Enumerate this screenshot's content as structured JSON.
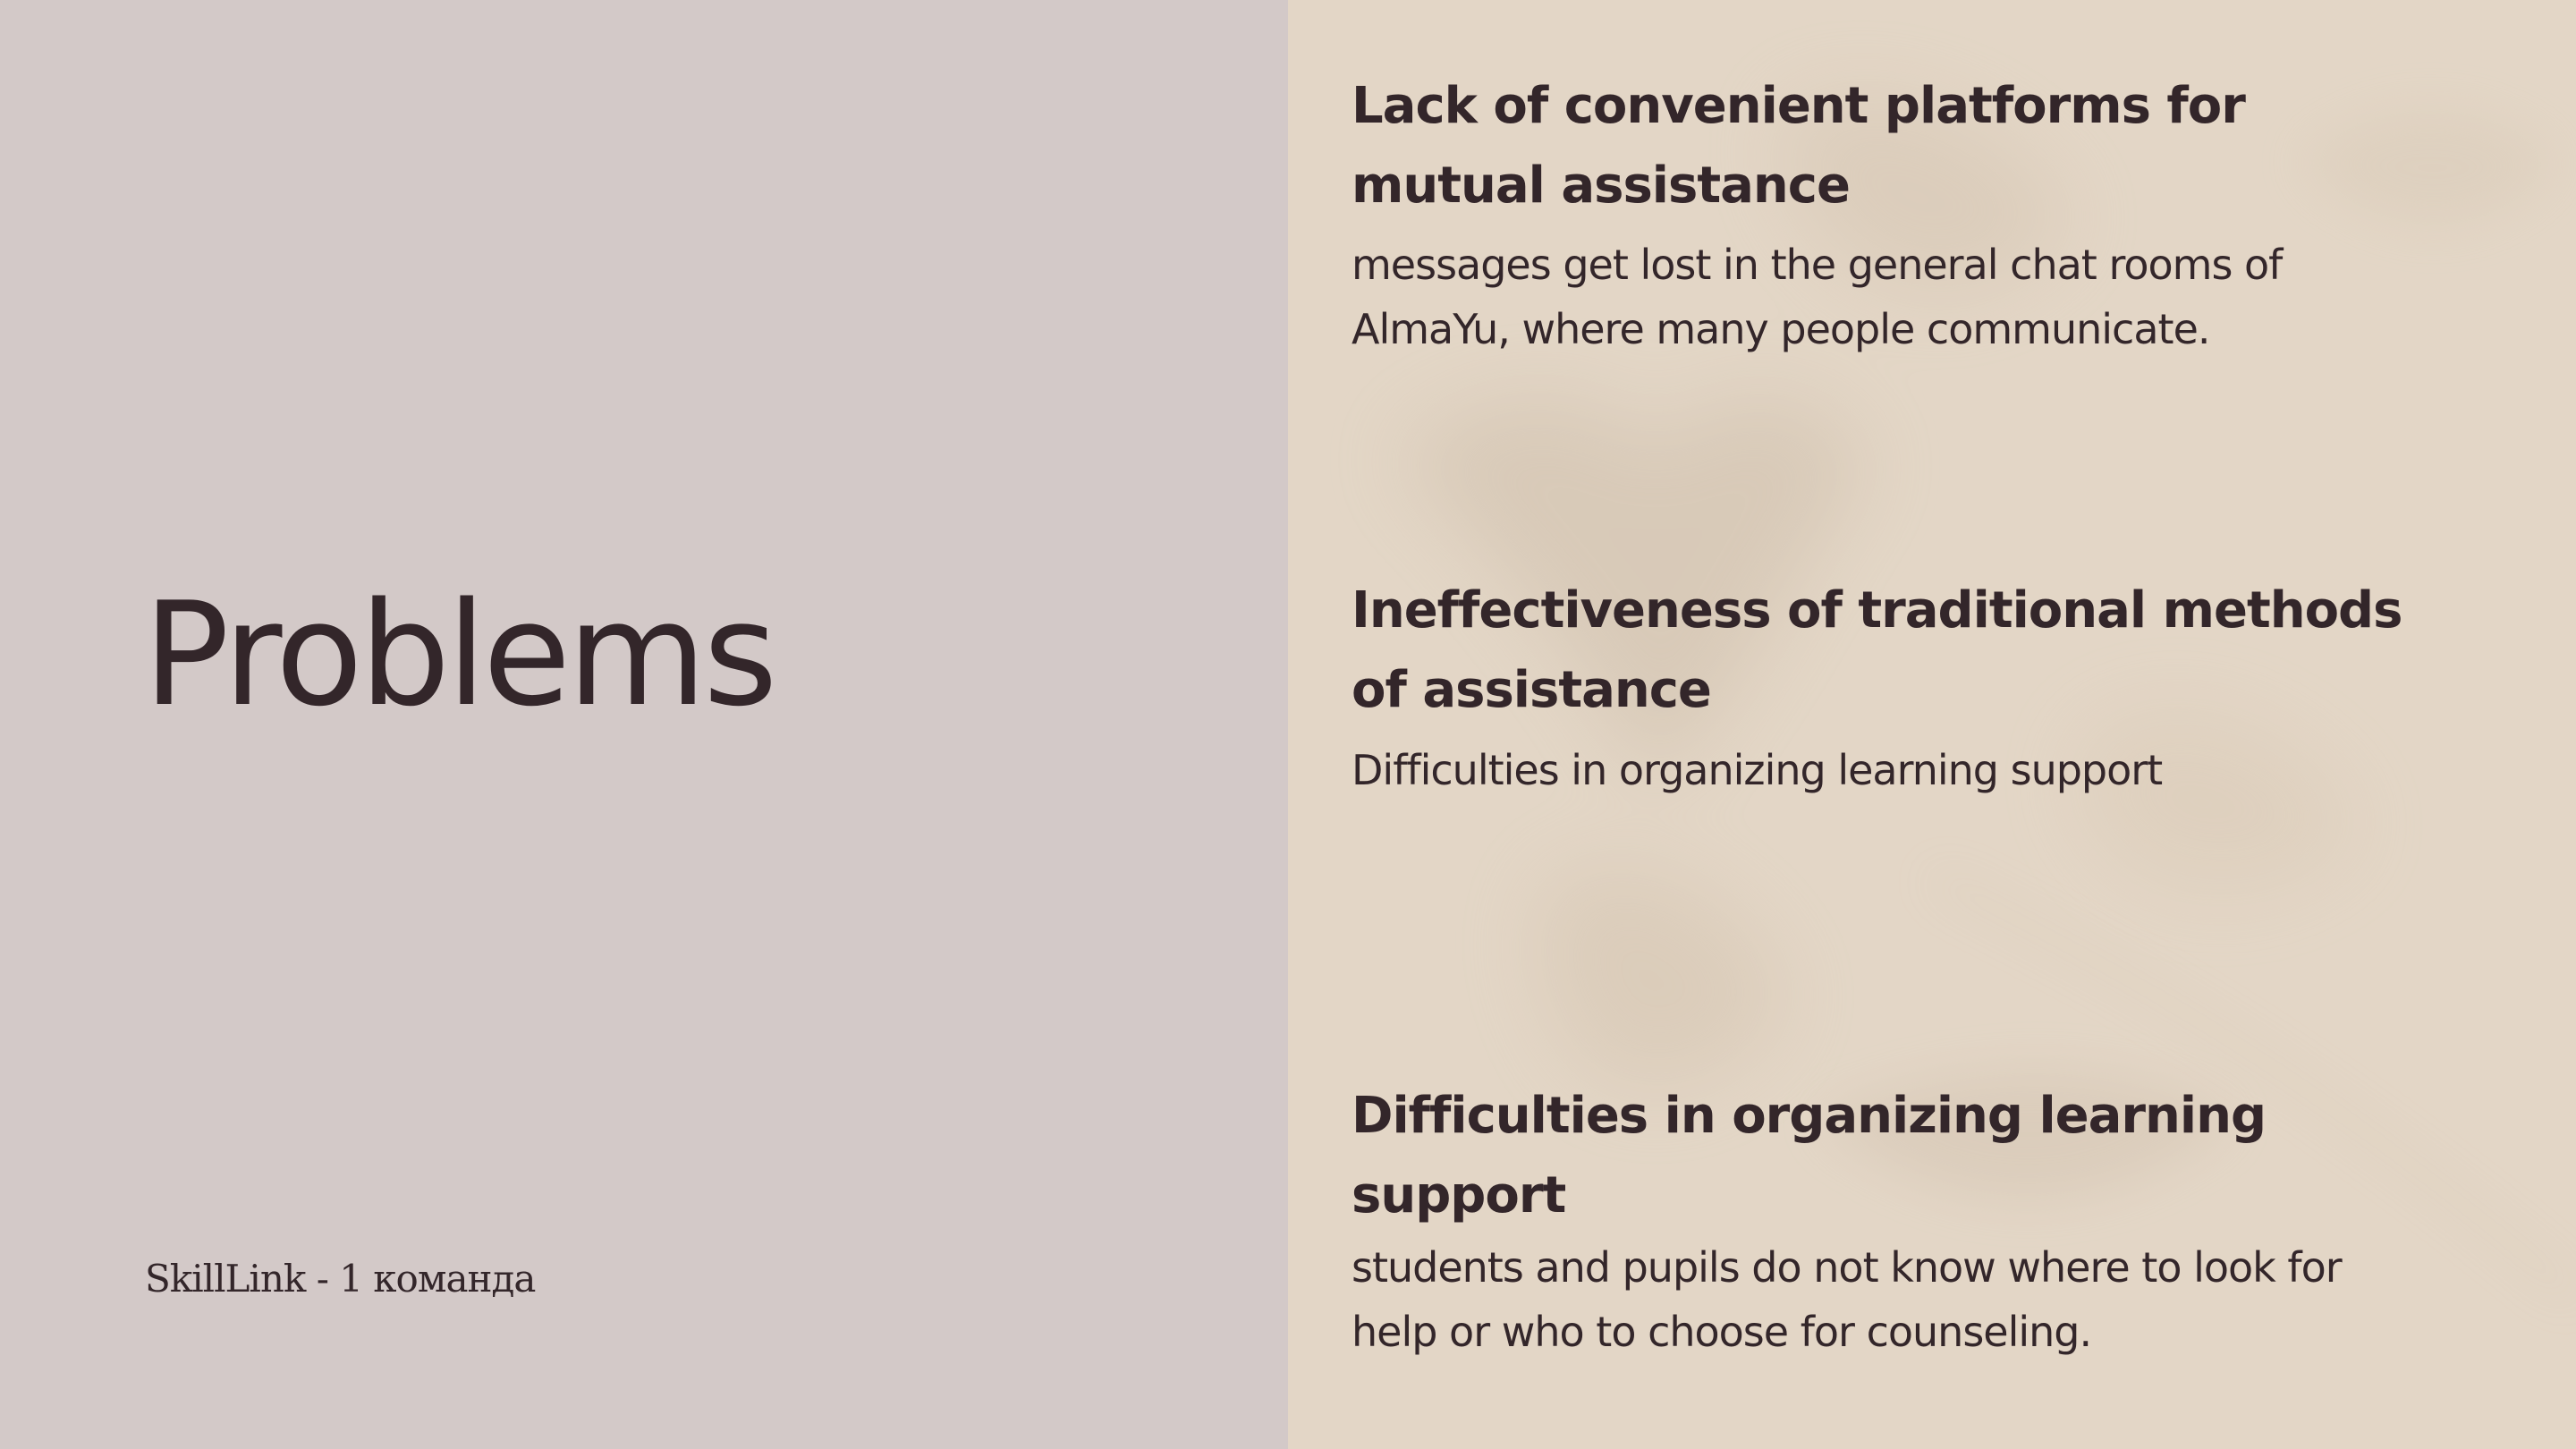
{
  "slide": {
    "title": "Problems",
    "footer": "SkillLink - 1 команда",
    "colors": {
      "left_background": "#d3c9c8",
      "right_background": "#e3d6c6",
      "text": "#33262a"
    },
    "problems": [
      {
        "heading": "Lack of convenient platforms for mutual assistance",
        "description": "messages get lost in the general chat rooms of AlmaYu, where many people communicate."
      },
      {
        "heading": "Ineffectiveness of traditional methods of assistance",
        "description": "Difficulties in organizing learning support"
      },
      {
        "heading": "Difficulties in organizing learning support",
        "description": "students and pupils do not know where to look for help or who to choose for counseling."
      }
    ]
  }
}
